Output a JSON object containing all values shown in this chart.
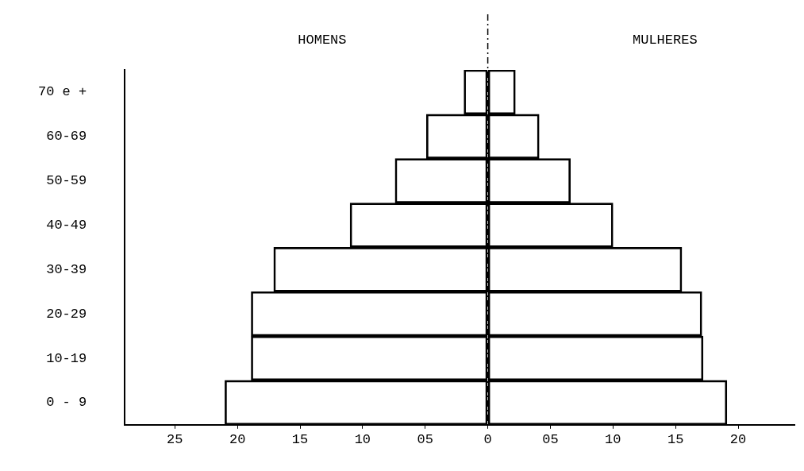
{
  "chart_data": {
    "type": "bar",
    "orientation": "horizontal",
    "stacked": true,
    "categories": [
      "70 e +",
      "60-69",
      "50-59",
      "40-49",
      "30-39",
      "20-29",
      "10-19",
      "0 - 9"
    ],
    "series": [
      {
        "color": "#000000",
        "values": [
          -1.9,
          -4.9,
          -7.4,
          -11.0,
          -17.1,
          -18.9,
          -18.9,
          -21.0
        ]
      },
      {
        "color": "#000000",
        "values": [
          2.2,
          4.1,
          6.6,
          10.0,
          15.5,
          17.1,
          17.2,
          19.1
        ]
      }
    ],
    "xlim": [
      -29,
      24.5
    ],
    "xticks": [
      {
        "value": -25,
        "label": "25"
      },
      {
        "value": -20,
        "label": "20"
      },
      {
        "value": -15,
        "label": "15"
      },
      {
        "value": -10,
        "label": "10"
      },
      {
        "value": -5,
        "label": "05"
      },
      0,
      {
        "value": 5,
        "label": "05"
      },
      10,
      15,
      20
    ],
    "ref_lines": [
      {
        "axis": "x",
        "value": 0,
        "label": null,
        "color": "#000000",
        "line_style": "dashed"
      }
    ],
    "annotations": [
      "HOMENS",
      "MULHERES"
    ],
    "grid": false,
    "legend": false
  }
}
